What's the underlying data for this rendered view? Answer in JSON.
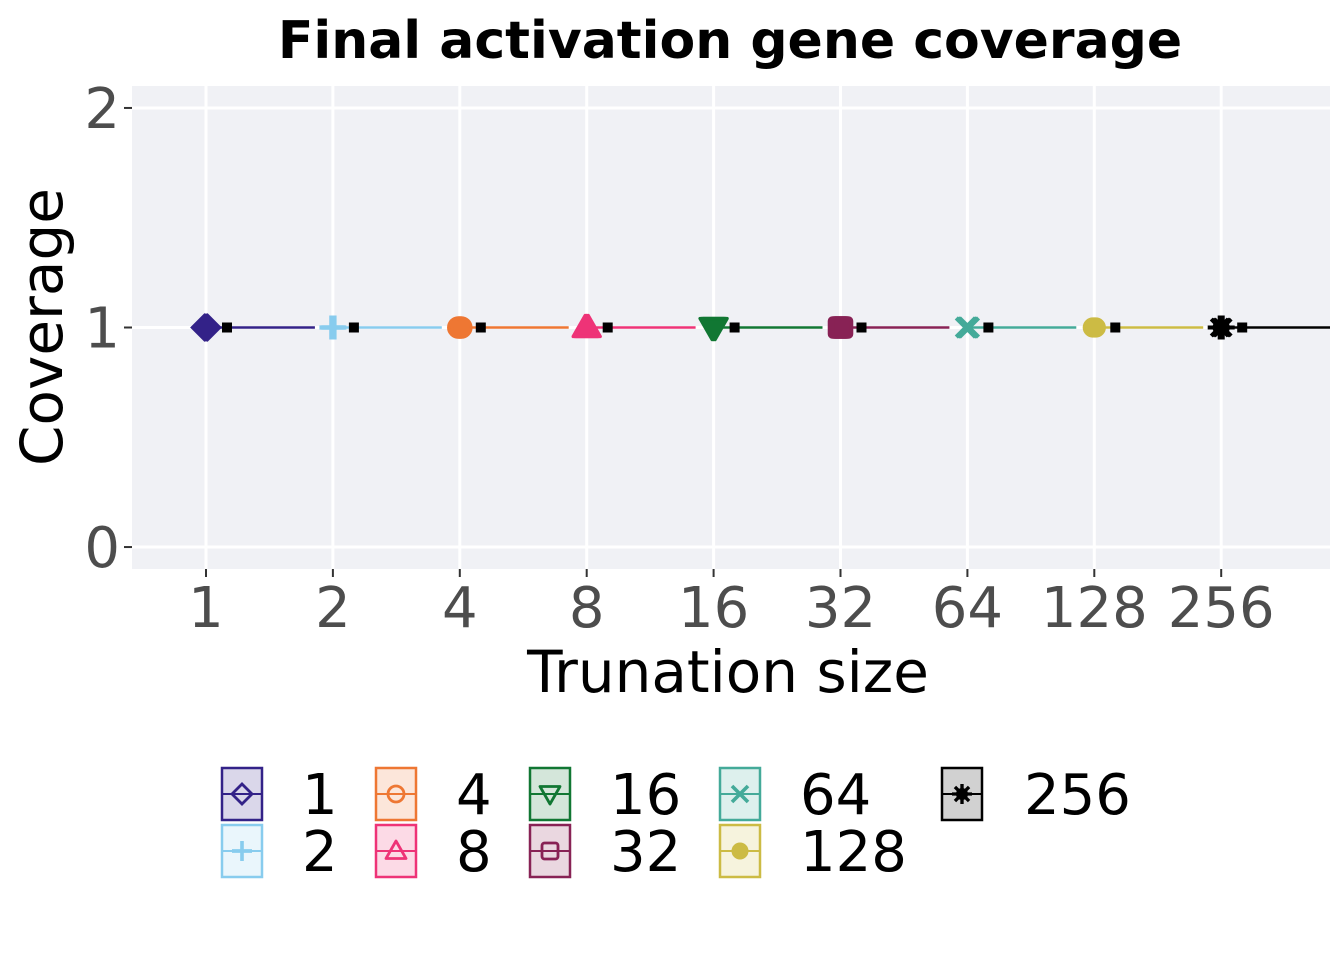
{
  "chart_data": {
    "type": "scatter",
    "title": "Final activation gene coverage",
    "xlabel": "Trunation size",
    "ylabel": "Coverage",
    "x_categories": [
      "1",
      "2",
      "4",
      "8",
      "16",
      "32",
      "64",
      "128",
      "256"
    ],
    "y_ticks": [
      "0",
      "1",
      "2"
    ],
    "ylim": [
      -0.1,
      2.1
    ],
    "grid": true,
    "legend_position": "bottom",
    "series": [
      {
        "name": "1",
        "x": "1",
        "values": [
          1,
          1,
          1
        ],
        "median": 1,
        "color": "#332288",
        "marker": "diamond"
      },
      {
        "name": "2",
        "x": "2",
        "values": [
          1,
          1,
          1
        ],
        "median": 1,
        "color": "#88ccee",
        "marker": "plus"
      },
      {
        "name": "4",
        "x": "4",
        "values": [
          1,
          1,
          1
        ],
        "median": 1,
        "color": "#ee7733",
        "marker": "circle"
      },
      {
        "name": "8",
        "x": "8",
        "values": [
          1,
          1,
          1
        ],
        "median": 1,
        "color": "#ee3377",
        "marker": "triangle-up"
      },
      {
        "name": "16",
        "x": "16",
        "values": [
          1,
          1,
          1
        ],
        "median": 1,
        "color": "#117733",
        "marker": "triangle-down"
      },
      {
        "name": "32",
        "x": "32",
        "values": [
          1,
          1,
          1
        ],
        "median": 1,
        "color": "#882255",
        "marker": "square"
      },
      {
        "name": "64",
        "x": "64",
        "values": [
          1,
          1,
          1
        ],
        "median": 1,
        "color": "#44aa99",
        "marker": "cross"
      },
      {
        "name": "128",
        "x": "128",
        "values": [
          1,
          1,
          1
        ],
        "median": 1,
        "color": "#ccbb44",
        "marker": "dot"
      },
      {
        "name": "256",
        "x": "256",
        "values": [
          1,
          1,
          1
        ],
        "median": 1,
        "color": "#000000",
        "marker": "asterisk"
      }
    ]
  }
}
